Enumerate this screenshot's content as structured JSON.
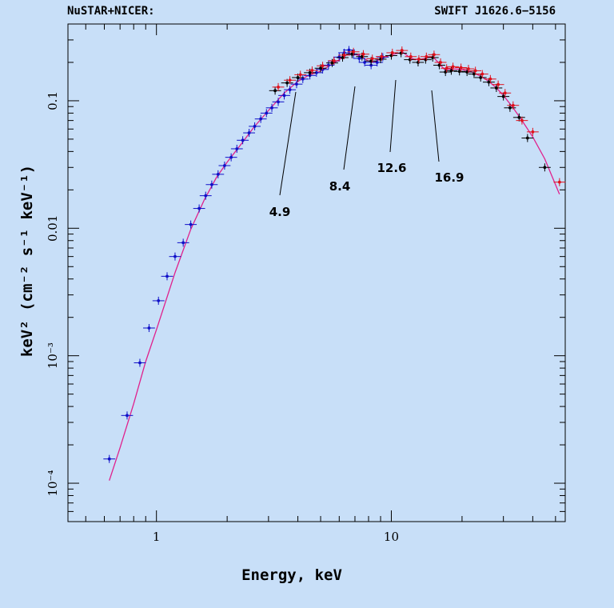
{
  "header": {
    "left_title": "NuSTAR+NICER:",
    "right_title": "SWIFT J1626.6−5156"
  },
  "colors": {
    "background": "#c8dff8",
    "nicer": "#1010c8",
    "nustar_a": "#000000",
    "nustar_b": "#e0101c",
    "model": "#e0208c"
  },
  "chart_data": {
    "type": "scatter",
    "xlabel": "Energy, keV",
    "ylabel": "keV² (cm⁻² s⁻¹ keV⁻¹)",
    "xscale": "log",
    "yscale": "log",
    "xlim": [
      0.42,
      55
    ],
    "ylim": [
      5e-05,
      0.4
    ],
    "x_tick_labels": [
      {
        "value": 1,
        "label": "1"
      },
      {
        "value": 10,
        "label": "10"
      }
    ],
    "y_tick_labels": [
      {
        "value": 0.0001,
        "label": "10⁻⁴"
      },
      {
        "value": 0.001,
        "label": "10⁻³"
      },
      {
        "value": 0.01,
        "label": "0.01"
      },
      {
        "value": 0.1,
        "label": "0.1"
      }
    ],
    "series": [
      {
        "instrument": "nicer",
        "points": [
          [
            0.63,
            0.000155
          ],
          [
            0.75,
            0.00034
          ],
          [
            0.85,
            0.00088
          ],
          [
            0.93,
            0.00165
          ],
          [
            1.02,
            0.0027
          ],
          [
            1.11,
            0.0042
          ],
          [
            1.2,
            0.006
          ],
          [
            1.3,
            0.0077
          ],
          [
            1.4,
            0.0107
          ],
          [
            1.52,
            0.0143
          ],
          [
            1.62,
            0.018
          ],
          [
            1.72,
            0.022
          ],
          [
            1.83,
            0.0265
          ],
          [
            1.95,
            0.031
          ],
          [
            2.08,
            0.036
          ],
          [
            2.2,
            0.042
          ],
          [
            2.33,
            0.049
          ],
          [
            2.48,
            0.056
          ],
          [
            2.62,
            0.063
          ],
          [
            2.78,
            0.072
          ],
          [
            2.94,
            0.08
          ],
          [
            3.1,
            0.088
          ],
          [
            3.3,
            0.098
          ],
          [
            3.5,
            0.11
          ],
          [
            3.7,
            0.122
          ],
          [
            3.95,
            0.135
          ],
          [
            4.2,
            0.148
          ],
          [
            4.5,
            0.158
          ],
          [
            4.8,
            0.166
          ],
          [
            5.1,
            0.176
          ],
          [
            5.4,
            0.19
          ],
          [
            5.7,
            0.205
          ],
          [
            6.0,
            0.22
          ],
          [
            6.3,
            0.238
          ],
          [
            6.6,
            0.25
          ],
          [
            6.9,
            0.232
          ],
          [
            7.3,
            0.215
          ],
          [
            7.7,
            0.2
          ],
          [
            8.2,
            0.19
          ],
          [
            8.7,
            0.2
          ],
          [
            9.2,
            0.22
          ]
        ]
      },
      {
        "instrument": "nustar_a",
        "points": [
          [
            3.2,
            0.12
          ],
          [
            3.6,
            0.138
          ],
          [
            4.0,
            0.152
          ],
          [
            4.5,
            0.166
          ],
          [
            5.0,
            0.18
          ],
          [
            5.6,
            0.198
          ],
          [
            6.2,
            0.218
          ],
          [
            6.8,
            0.232
          ],
          [
            7.5,
            0.222
          ],
          [
            8.2,
            0.205
          ],
          [
            9.0,
            0.212
          ],
          [
            10.0,
            0.226
          ],
          [
            11.0,
            0.236
          ],
          [
            12.0,
            0.21
          ],
          [
            13.0,
            0.2
          ],
          [
            14.0,
            0.21
          ],
          [
            15.0,
            0.218
          ],
          [
            16.0,
            0.19
          ],
          [
            17.0,
            0.168
          ],
          [
            18.0,
            0.172
          ],
          [
            19.5,
            0.17
          ],
          [
            21.0,
            0.168
          ],
          [
            22.5,
            0.162
          ],
          [
            24.0,
            0.152
          ],
          [
            26.0,
            0.14
          ],
          [
            28.0,
            0.126
          ],
          [
            30.0,
            0.108
          ],
          [
            32.0,
            0.088
          ],
          [
            35.0,
            0.074
          ],
          [
            38.0,
            0.051
          ],
          [
            45.0,
            0.03
          ]
        ]
      },
      {
        "instrument": "nustar_b",
        "points": [
          [
            3.3,
            0.128
          ],
          [
            3.7,
            0.145
          ],
          [
            4.1,
            0.16
          ],
          [
            4.6,
            0.173
          ],
          [
            5.1,
            0.188
          ],
          [
            5.7,
            0.206
          ],
          [
            6.3,
            0.228
          ],
          [
            6.9,
            0.242
          ],
          [
            7.6,
            0.232
          ],
          [
            8.3,
            0.214
          ],
          [
            9.1,
            0.222
          ],
          [
            10.1,
            0.238
          ],
          [
            11.1,
            0.248
          ],
          [
            12.1,
            0.222
          ],
          [
            13.1,
            0.212
          ],
          [
            14.1,
            0.222
          ],
          [
            15.2,
            0.23
          ],
          [
            16.2,
            0.2
          ],
          [
            17.2,
            0.18
          ],
          [
            18.3,
            0.185
          ],
          [
            19.8,
            0.182
          ],
          [
            21.3,
            0.178
          ],
          [
            22.8,
            0.172
          ],
          [
            24.4,
            0.162
          ],
          [
            26.4,
            0.148
          ],
          [
            28.5,
            0.134
          ],
          [
            30.5,
            0.115
          ],
          [
            33.0,
            0.092
          ],
          [
            36.0,
            0.07
          ],
          [
            40.0,
            0.057
          ],
          [
            52.0,
            0.023
          ]
        ]
      }
    ],
    "model": [
      [
        0.63,
        0.000105
      ],
      [
        0.7,
        0.00019
      ],
      [
        0.8,
        0.00042
      ],
      [
        0.9,
        0.0009
      ],
      [
        1.0,
        0.0016
      ],
      [
        1.2,
        0.0045
      ],
      [
        1.4,
        0.0098
      ],
      [
        1.6,
        0.0168
      ],
      [
        1.8,
        0.025
      ],
      [
        2.0,
        0.033
      ],
      [
        2.3,
        0.046
      ],
      [
        2.6,
        0.062
      ],
      [
        3.0,
        0.084
      ],
      [
        3.5,
        0.115
      ],
      [
        4.0,
        0.142
      ],
      [
        4.5,
        0.16
      ],
      [
        4.9,
        0.168
      ],
      [
        5.3,
        0.182
      ],
      [
        6.0,
        0.21
      ],
      [
        6.6,
        0.235
      ],
      [
        7.2,
        0.228
      ],
      [
        8.0,
        0.205
      ],
      [
        8.4,
        0.2
      ],
      [
        9.0,
        0.212
      ],
      [
        10.0,
        0.23
      ],
      [
        11.2,
        0.24
      ],
      [
        12.0,
        0.218
      ],
      [
        12.6,
        0.21
      ],
      [
        13.5,
        0.212
      ],
      [
        15.0,
        0.222
      ],
      [
        16.0,
        0.196
      ],
      [
        16.9,
        0.175
      ],
      [
        18.0,
        0.178
      ],
      [
        20.0,
        0.176
      ],
      [
        22.0,
        0.168
      ],
      [
        24.0,
        0.156
      ],
      [
        26.0,
        0.142
      ],
      [
        28.0,
        0.126
      ],
      [
        30.0,
        0.11
      ],
      [
        33.0,
        0.088
      ],
      [
        36.0,
        0.07
      ],
      [
        40.0,
        0.052
      ],
      [
        45.0,
        0.035
      ],
      [
        52.0,
        0.0185
      ]
    ],
    "annotations": [
      {
        "label": "4.9",
        "energy": 4.9
      },
      {
        "label": "8.4",
        "energy": 8.4
      },
      {
        "label": "12.6",
        "energy": 12.6
      },
      {
        "label": "16.9",
        "energy": 16.9
      }
    ]
  }
}
